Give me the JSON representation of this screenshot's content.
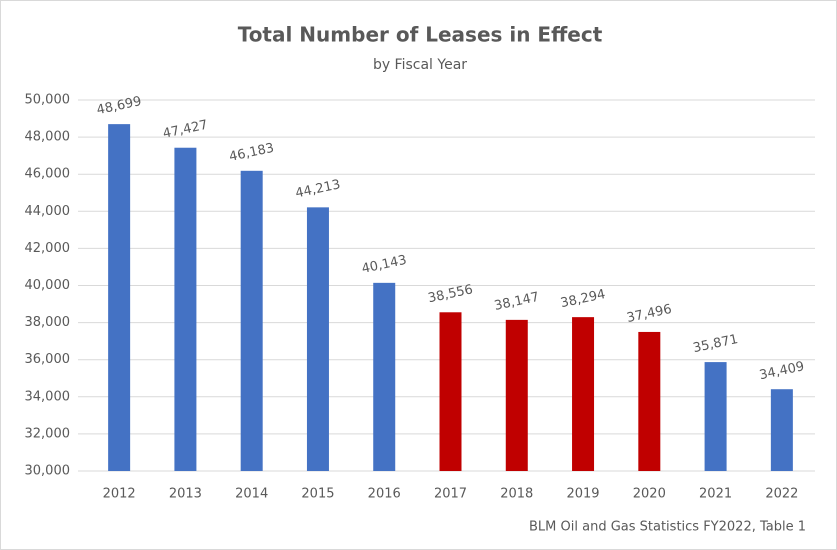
{
  "chart_data": {
    "type": "bar",
    "title": "Total Number of Leases in Effect",
    "subtitle": "by Fiscal Year",
    "categories": [
      "2012",
      "2013",
      "2014",
      "2015",
      "2016",
      "2017",
      "2018",
      "2019",
      "2020",
      "2021",
      "2022"
    ],
    "values": [
      48699,
      47427,
      46183,
      44213,
      40143,
      38556,
      38147,
      38294,
      37496,
      35871,
      34409
    ],
    "value_labels": [
      "48,699",
      "47,427",
      "46,183",
      "44,213",
      "40,143",
      "38,556",
      "38,147",
      "38,294",
      "37,496",
      "35,871",
      "34,409"
    ],
    "colors": [
      "#4472c4",
      "#4472c4",
      "#4472c4",
      "#4472c4",
      "#4472c4",
      "#c00000",
      "#c00000",
      "#c00000",
      "#c00000",
      "#4472c4",
      "#4472c4"
    ],
    "ylim": [
      30000,
      50000
    ],
    "yticks": [
      {
        "value": 30000,
        "label": "30,000"
      },
      {
        "value": 32000,
        "label": "32,000"
      },
      {
        "value": 34000,
        "label": "34,000"
      },
      {
        "value": 36000,
        "label": "36,000"
      },
      {
        "value": 38000,
        "label": "38,000"
      },
      {
        "value": 40000,
        "label": "40,000"
      },
      {
        "value": 42000,
        "label": "42,000"
      },
      {
        "value": 44000,
        "label": "44,000"
      },
      {
        "value": 46000,
        "label": "46,000"
      },
      {
        "value": 48000,
        "label": "48,000"
      },
      {
        "value": 50000,
        "label": "50,000"
      }
    ],
    "grid": true,
    "source": "BLM Oil and Gas Statistics FY2022, Table 1"
  }
}
